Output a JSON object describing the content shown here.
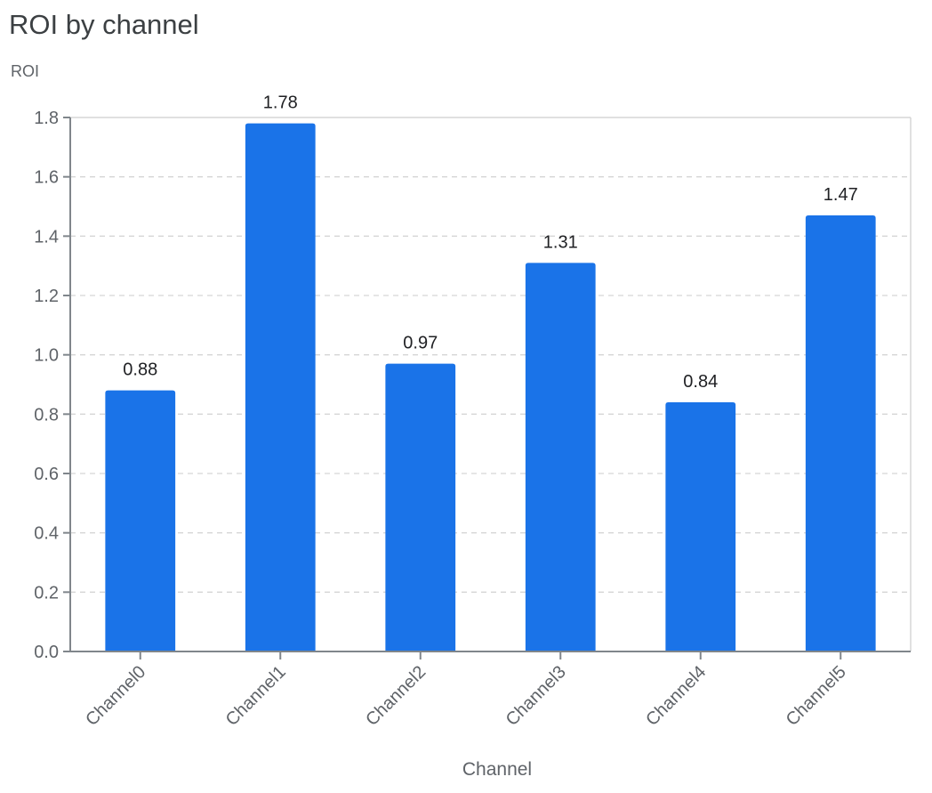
{
  "chart_data": {
    "type": "bar",
    "title": "ROI by channel",
    "ylabel": "ROI",
    "xlabel": "Channel",
    "categories": [
      "Channel0",
      "Channel1",
      "Channel2",
      "Channel3",
      "Channel4",
      "Channel5"
    ],
    "values": [
      0.88,
      1.78,
      0.97,
      1.31,
      0.84,
      1.47
    ],
    "data_labels": [
      "0.88",
      "1.78",
      "0.97",
      "1.31",
      "0.84",
      "1.47"
    ],
    "ylim": [
      0,
      1.8
    ],
    "yticks": [
      "0.0",
      "0.2",
      "0.4",
      "0.6",
      "0.8",
      "1.0",
      "1.2",
      "1.4",
      "1.6",
      "1.8"
    ],
    "grid": true,
    "bar_color": "#1a73e8"
  }
}
